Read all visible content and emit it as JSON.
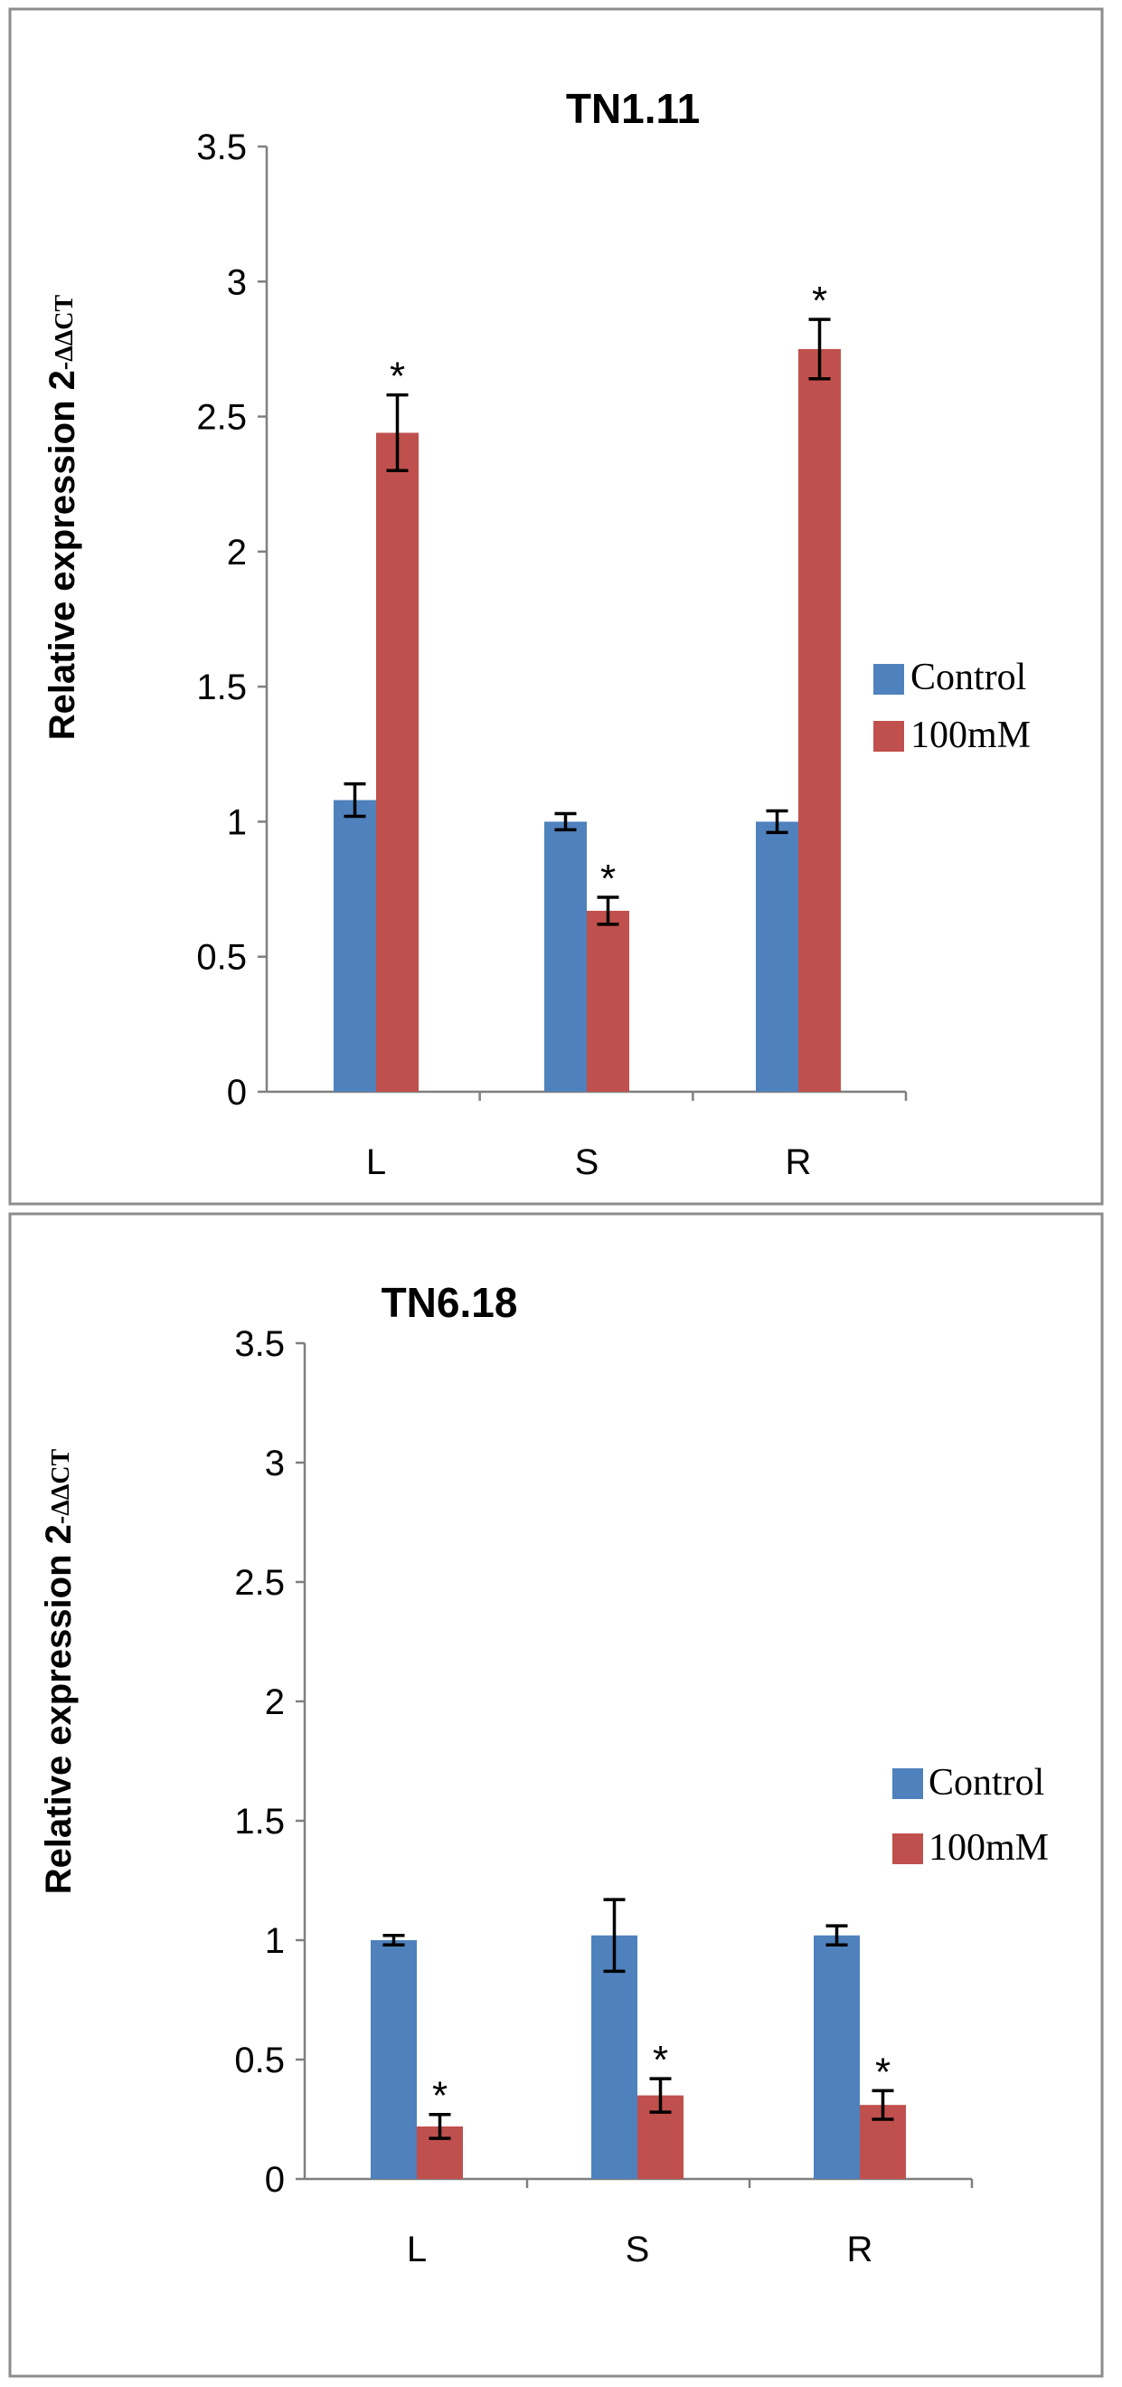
{
  "colors": {
    "control": "#4f81bd",
    "treated": "#c0504d"
  },
  "chart_data": [
    {
      "type": "bar",
      "title": "TN1.11",
      "ylabel": "Relative expression 2",
      "ylabel_sub": "-ΔΔCT",
      "xlabel": "",
      "categories": [
        "L",
        "S",
        "R"
      ],
      "ylim": [
        0,
        3.5
      ],
      "yticks": [
        "0",
        "0.5",
        "1",
        "1.5",
        "2",
        "2.5",
        "3",
        "3.5"
      ],
      "legend_position": "right",
      "series": [
        {
          "name": "Control",
          "values": [
            1.08,
            1.0,
            1.0
          ],
          "errors": [
            0.06,
            0.03,
            0.04
          ],
          "markers": [
            "",
            "",
            ""
          ]
        },
        {
          "name": "100mM",
          "values": [
            2.44,
            0.67,
            2.75
          ],
          "errors": [
            0.14,
            0.05,
            0.11
          ],
          "markers": [
            "*",
            "*",
            "*"
          ]
        }
      ]
    },
    {
      "type": "bar",
      "title": "TN6.18",
      "ylabel": "Relative expression 2",
      "ylabel_sub": "-ΔΔCT",
      "xlabel": "",
      "categories": [
        "L",
        "S",
        "R"
      ],
      "ylim": [
        0,
        3.5
      ],
      "yticks": [
        "0",
        "0.5",
        "1",
        "1.5",
        "2",
        "2.5",
        "3",
        "3.5"
      ],
      "legend_position": "right",
      "series": [
        {
          "name": "Control",
          "values": [
            1.0,
            1.02,
            1.02
          ],
          "errors": [
            0.02,
            0.15,
            0.04
          ],
          "markers": [
            "",
            "",
            ""
          ]
        },
        {
          "name": "100mM",
          "values": [
            0.22,
            0.35,
            0.31
          ],
          "errors": [
            0.05,
            0.07,
            0.06
          ],
          "markers": [
            "*",
            "*",
            "*"
          ]
        }
      ]
    }
  ]
}
